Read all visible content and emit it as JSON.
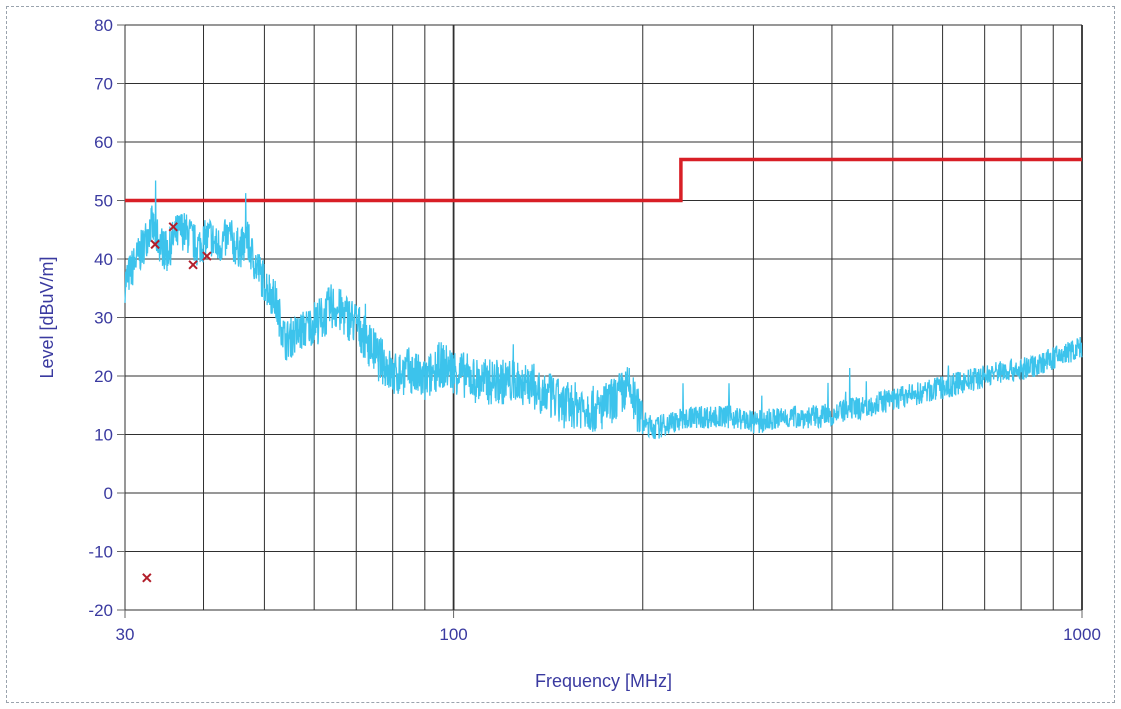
{
  "chart_data": {
    "type": "line",
    "title": "",
    "xlabel": "Frequency [MHz]",
    "ylabel": "Level [dBuV/m]",
    "x_scale": "log",
    "xlim": [
      30,
      1000
    ],
    "ylim": [
      -20,
      80
    ],
    "grid": true,
    "x_tick_labels": [
      "30",
      "100",
      "1000"
    ],
    "y_ticks": [
      -20,
      -10,
      0,
      10,
      20,
      30,
      40,
      50,
      60,
      70,
      80
    ],
    "colors": {
      "limit": "#d81f26",
      "measurement": "#3cc3ec",
      "markers": "#b21e2a",
      "text": "#3a3aa0",
      "grid": "#2f2f2f"
    },
    "series": [
      {
        "kind": "limit",
        "x": [
          30,
          230,
          230,
          1000
        ],
        "y": [
          50,
          50,
          57,
          57
        ]
      },
      {
        "kind": "measurement",
        "x": [
          30,
          31,
          32,
          33,
          34,
          35,
          36,
          37,
          38,
          39,
          40,
          41,
          42,
          43,
          44,
          45,
          46,
          47,
          48,
          49,
          50,
          52,
          54,
          56,
          58,
          60,
          62,
          64,
          66,
          68,
          70,
          72,
          74,
          76,
          78,
          80,
          85,
          90,
          95,
          100,
          110,
          120,
          130,
          140,
          150,
          160,
          170,
          180,
          190,
          200,
          210,
          220,
          240,
          260,
          280,
          300,
          340,
          380,
          420,
          460,
          500,
          550,
          600,
          650,
          700,
          750,
          800,
          850,
          900,
          950,
          1000
        ],
        "y": [
          36,
          39,
          42,
          46,
          43,
          41,
          44,
          45,
          44,
          42,
          43,
          44,
          42,
          43,
          44,
          42,
          42,
          43,
          40,
          38,
          36,
          33,
          26,
          27,
          28,
          29,
          30,
          32,
          31,
          30,
          29,
          27,
          25,
          23,
          22,
          20,
          21,
          19,
          22,
          21,
          19,
          19,
          19,
          17,
          15,
          15,
          14,
          16,
          18,
          12,
          11,
          12,
          13,
          13,
          13,
          12,
          13,
          13,
          14,
          15,
          16,
          17,
          18,
          19,
          20,
          21,
          21,
          22,
          23,
          24,
          25
        ]
      },
      {
        "kind": "markers",
        "x": [
          32.5,
          33.5,
          35.8,
          38.5,
          40.5
        ],
        "y": [
          -14.5,
          42.5,
          45.5,
          39,
          40.5
        ]
      }
    ]
  }
}
